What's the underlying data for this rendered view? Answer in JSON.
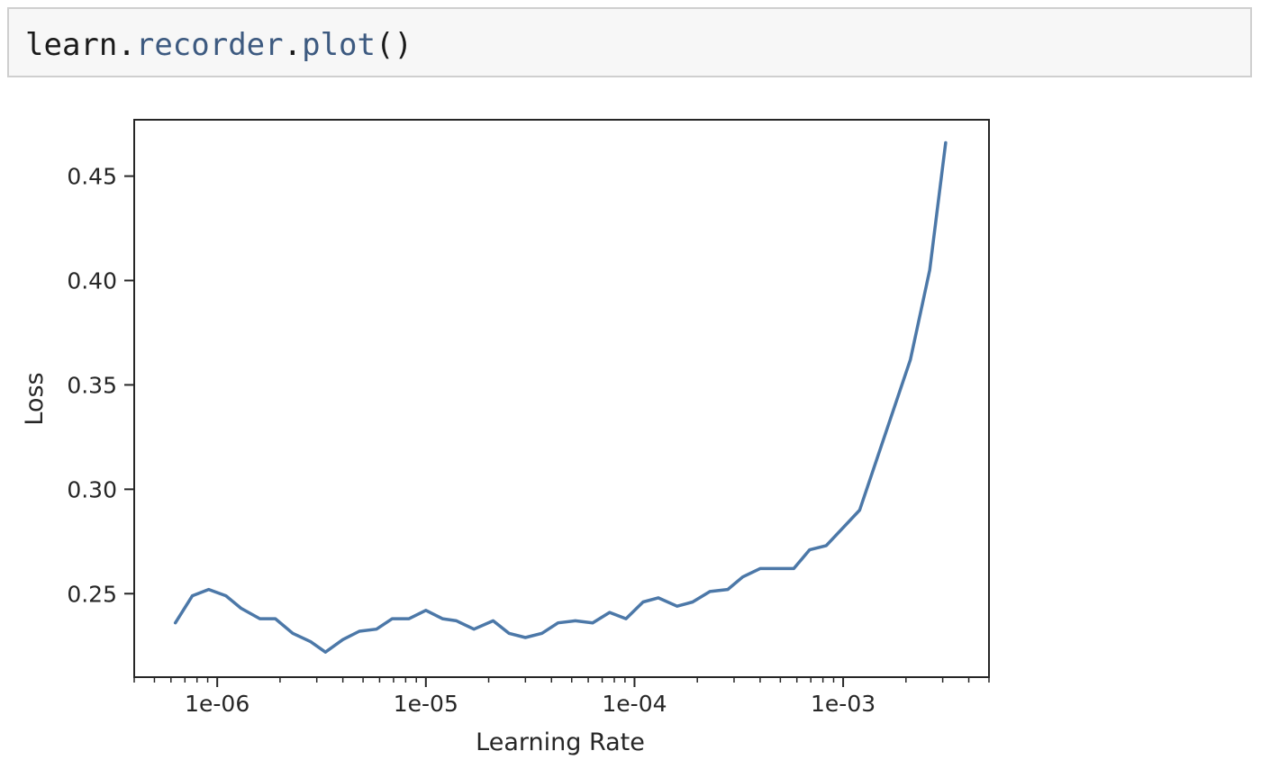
{
  "code_cell": {
    "tokens": [
      {
        "text": "learn",
        "role": "name"
      },
      {
        "text": ".",
        "role": "punc"
      },
      {
        "text": "recorder",
        "role": "attr"
      },
      {
        "text": ".",
        "role": "punc"
      },
      {
        "text": "plot",
        "role": "attr"
      },
      {
        "text": "()",
        "role": "punc"
      }
    ]
  },
  "chart_data": {
    "type": "line",
    "title": "",
    "xlabel": "Learning Rate",
    "ylabel": "Loss",
    "xscale": "log",
    "xlim": [
      4e-07,
      0.005
    ],
    "ylim": [
      0.21,
      0.477
    ],
    "xticks": [
      {
        "value": 1e-06,
        "label": "1e-06"
      },
      {
        "value": 1e-05,
        "label": "1e-05"
      },
      {
        "value": 0.0001,
        "label": "1e-04"
      },
      {
        "value": 0.001,
        "label": "1e-03"
      }
    ],
    "yticks": [
      {
        "value": 0.25,
        "label": "0.25"
      },
      {
        "value": 0.3,
        "label": "0.30"
      },
      {
        "value": 0.35,
        "label": "0.35"
      },
      {
        "value": 0.4,
        "label": "0.40"
      },
      {
        "value": 0.45,
        "label": "0.45"
      }
    ],
    "grid": false,
    "series": [
      {
        "color": "#4c78a8",
        "x": [
          6.3e-07,
          7.6e-07,
          9.1e-07,
          1.1e-06,
          1.3e-06,
          1.6e-06,
          1.9e-06,
          2.3e-06,
          2.8e-06,
          3.3e-06,
          4e-06,
          4.8e-06,
          5.8e-06,
          6.9e-06,
          8.3e-06,
          1e-05,
          1.2e-05,
          1.4e-05,
          1.7e-05,
          2.1e-05,
          2.5e-05,
          3e-05,
          3.6e-05,
          4.3e-05,
          5.2e-05,
          6.3e-05,
          7.6e-05,
          9.1e-05,
          0.00011,
          0.00013,
          0.00016,
          0.00019,
          0.00023,
          0.00028,
          0.00033,
          0.0004,
          0.00048,
          0.00058,
          0.00069,
          0.00083,
          0.0012,
          0.0021,
          0.0026,
          0.0031
        ],
        "y": [
          0.236,
          0.249,
          0.252,
          0.249,
          0.243,
          0.238,
          0.238,
          0.231,
          0.227,
          0.222,
          0.228,
          0.232,
          0.233,
          0.238,
          0.238,
          0.242,
          0.238,
          0.237,
          0.233,
          0.237,
          0.231,
          0.229,
          0.231,
          0.236,
          0.237,
          0.236,
          0.241,
          0.238,
          0.246,
          0.248,
          0.244,
          0.246,
          0.251,
          0.252,
          0.258,
          0.262,
          0.262,
          0.262,
          0.271,
          0.273,
          0.29,
          0.362,
          0.405,
          0.466
        ]
      }
    ]
  }
}
